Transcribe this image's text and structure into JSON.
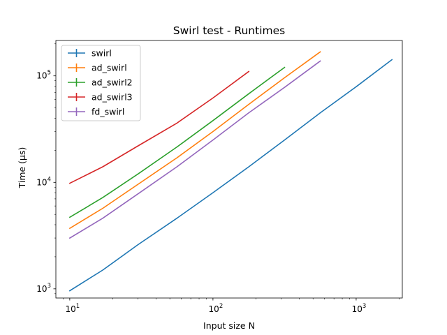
{
  "chart_data": {
    "type": "line",
    "title": "Swirl test - Runtimes",
    "xlabel": "Input size N",
    "ylabel": "Time (µs)",
    "xscale": "log",
    "yscale": "log",
    "xlim": [
      8,
      2100
    ],
    "ylim": [
      820,
      215000
    ],
    "grid": false,
    "legend": "top-left",
    "xticks": [
      {
        "value": 10,
        "base": "10",
        "exp": "1"
      },
      {
        "value": 100,
        "base": "10",
        "exp": "2"
      },
      {
        "value": 1000,
        "base": "10",
        "exp": "3"
      }
    ],
    "yticks": [
      {
        "value": 1000,
        "base": "10",
        "exp": "3"
      },
      {
        "value": 10000,
        "base": "10",
        "exp": "4"
      },
      {
        "value": 100000,
        "base": "10",
        "exp": "5"
      }
    ],
    "series": [
      {
        "name": "swirl",
        "color": "#1f77b4",
        "x": [
          10,
          17,
          30,
          56,
          100,
          178,
          316,
          562,
          1000,
          1778
        ],
        "y": [
          960,
          1500,
          2600,
          4600,
          8000,
          14000,
          25000,
          45000,
          79000,
          142000
        ]
      },
      {
        "name": "ad_swirl",
        "color": "#ff7f0e",
        "x": [
          10,
          17,
          30,
          56,
          100,
          178,
          316,
          562
        ],
        "y": [
          3700,
          5700,
          9600,
          17000,
          30000,
          54000,
          96000,
          168000
        ]
      },
      {
        "name": "ad_swirl2",
        "color": "#2ca02c",
        "x": [
          10,
          17,
          30,
          56,
          100,
          178,
          316
        ],
        "y": [
          4700,
          7200,
          12000,
          21500,
          38000,
          68000,
          120000
        ]
      },
      {
        "name": "ad_swirl3",
        "color": "#d62728",
        "x": [
          10,
          17,
          30,
          56,
          100,
          178
        ],
        "y": [
          9800,
          14000,
          22000,
          36000,
          62000,
          110000
        ]
      },
      {
        "name": "fd_swirl",
        "color": "#9467bd",
        "x": [
          10,
          17,
          30,
          56,
          100,
          178,
          316,
          562
        ],
        "y": [
          3000,
          4600,
          7800,
          14000,
          25000,
          45000,
          78000,
          138000
        ]
      }
    ]
  }
}
